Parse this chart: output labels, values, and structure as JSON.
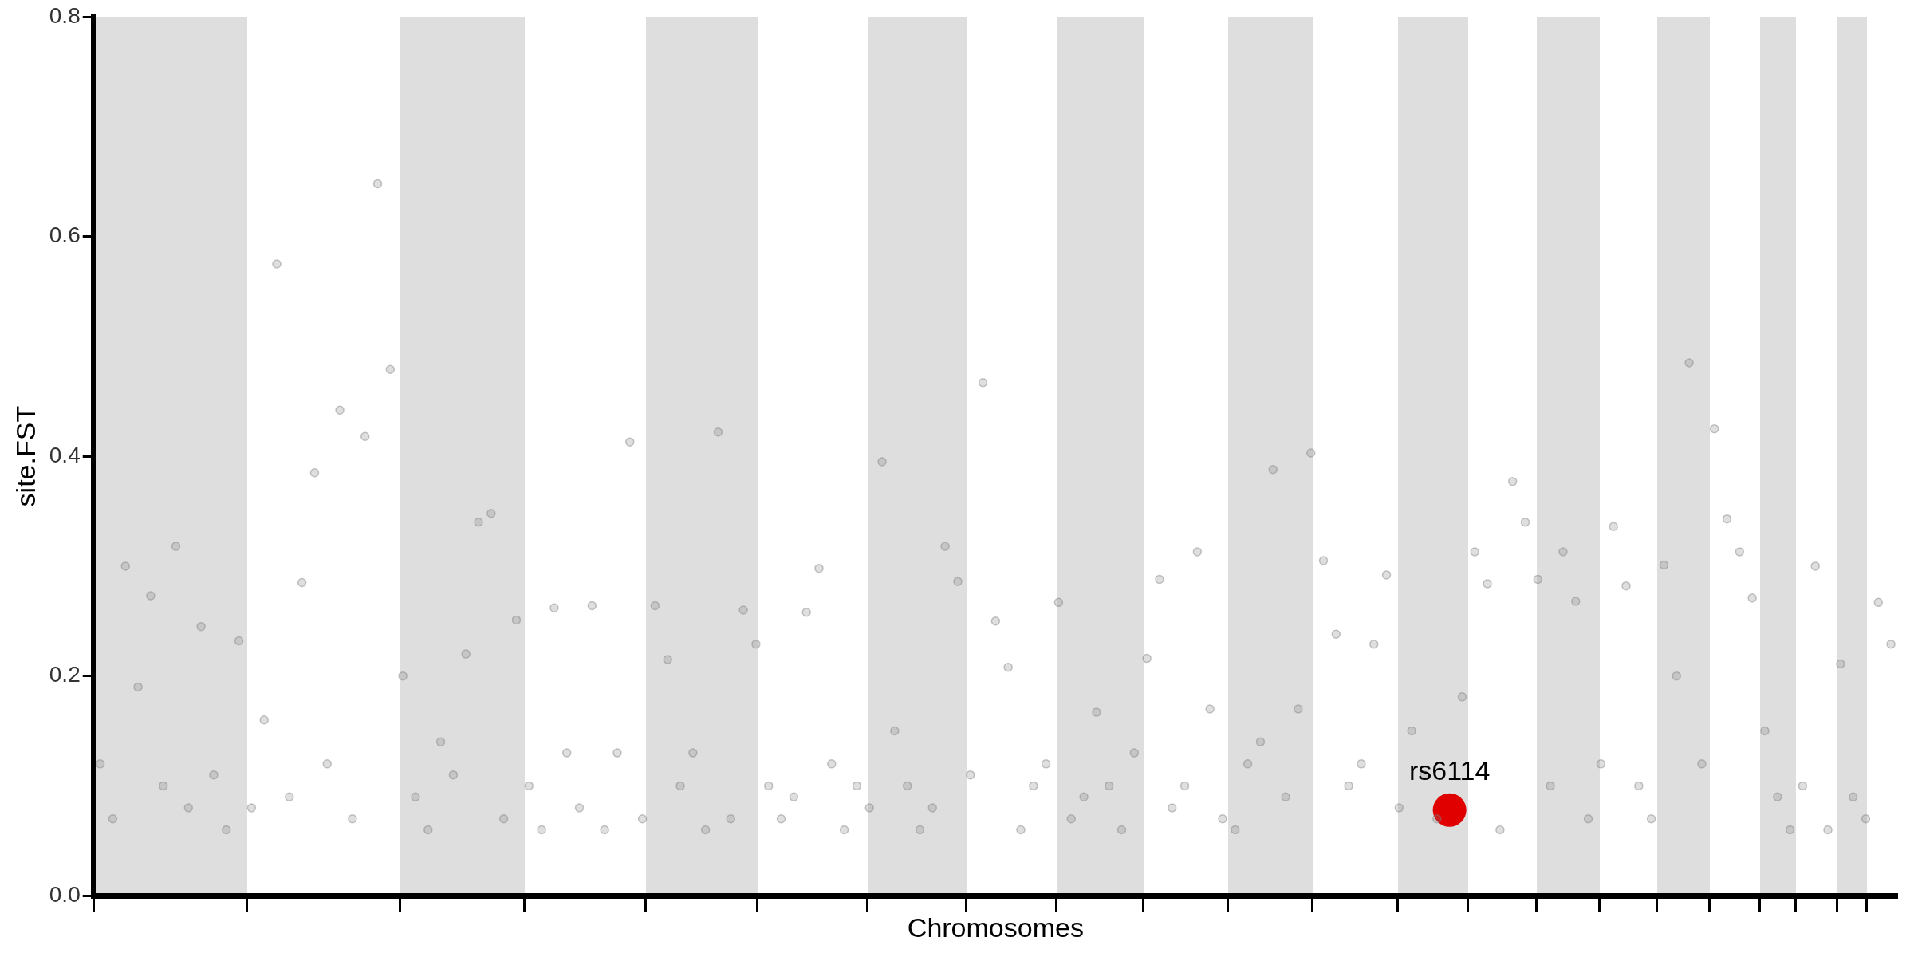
{
  "chart_data": {
    "type": "scatter",
    "xlabel": "Chromosomes",
    "ylabel": "site.FST",
    "ylim": [
      0,
      0.8
    ],
    "categories": [
      null,
      null,
      null,
      null,
      null,
      null,
      null,
      null,
      null,
      null,
      null,
      null,
      null,
      null,
      null,
      null,
      null,
      null,
      null,
      null,
      null,
      null,
      null,
      null,
      null,
      null,
      null,
      null,
      null,
      null,
      null,
      null,
      null,
      null,
      null,
      null,
      null,
      null,
      null,
      null,
      null,
      null,
      null,
      null,
      null,
      null,
      null,
      null,
      null,
      null,
      null,
      null,
      null,
      null,
      null,
      null,
      null,
      null,
      null,
      null,
      null,
      null,
      null,
      null,
      null,
      null,
      null,
      null,
      null,
      null,
      null,
      null,
      null,
      null,
      null,
      null,
      null,
      null,
      null,
      null,
      null,
      null,
      null,
      null,
      null,
      null,
      null,
      null,
      null,
      null,
      null,
      null,
      null,
      null,
      null,
      null,
      null,
      null,
      null,
      null,
      null,
      null,
      null,
      null,
      null,
      null,
      null,
      null,
      null,
      null,
      null,
      null,
      null,
      null,
      null,
      null,
      null,
      null,
      null,
      null,
      null,
      null,
      null,
      null,
      null,
      null,
      null,
      null,
      null,
      null,
      null,
      null,
      null,
      null,
      null,
      null,
      null,
      null,
      null,
      null,
      null,
      null,
      null
    ],
    "yticks": [
      {
        "value": 0,
        "label": "0.0"
      },
      {
        "value": 0.2,
        "label": "0.2"
      },
      {
        "value": 0.4,
        "label": "0.4"
      },
      {
        "value": 0.6,
        "label": "0.6"
      },
      {
        "value": 0.8,
        "label": "0.8"
      }
    ],
    "tick_labels": "y",
    "grid": false,
    "legend": false,
    "marker": "circle",
    "annotations": [
      {
        "text": "rs6114",
        "y": 0.078
      }
    ],
    "series": [
      {
        "color": "#808080",
        "values": [
          0.12,
          0.07,
          0.3,
          0.19,
          0.273,
          0.1,
          0.318,
          0.08,
          0.245,
          0.11,
          0.06,
          0.232,
          0.08,
          0.16,
          0.575,
          0.09,
          0.285,
          0.385,
          0.12,
          0.442,
          0.07,
          0.418,
          0.648,
          0.479,
          0.2,
          0.09,
          0.06,
          0.14,
          0.11,
          0.22,
          0.34,
          0.348,
          0.07,
          0.251,
          0.1,
          0.06,
          0.262,
          0.13,
          0.08,
          0.264,
          0.06,
          0.13,
          0.413,
          0.07,
          0.264,
          0.215,
          0.1,
          0.13,
          0.06,
          0.422,
          0.07,
          0.26,
          0.229,
          0.1,
          0.07,
          0.09,
          0.258,
          0.298,
          0.12,
          0.06,
          0.1,
          0.08,
          0.395,
          0.15,
          0.1,
          0.06,
          0.08,
          0.318,
          0.286,
          0.11,
          0.467,
          0.25,
          0.208,
          0.06,
          0.1,
          0.12,
          0.267,
          0.07,
          0.09,
          0.167,
          0.1,
          0.06,
          0.13,
          0.216,
          0.288,
          0.08,
          0.1,
          0.313,
          0.17,
          0.07,
          0.06,
          0.12,
          0.14,
          0.388,
          0.09,
          0.17,
          0.403,
          0.305,
          0.238,
          0.1,
          0.12,
          0.229,
          0.292,
          0.08,
          0.15,
          0.11,
          0.07,
          null,
          0.181,
          0.313,
          0.284,
          0.06,
          0.377,
          0.34,
          0.288,
          0.1,
          0.313,
          0.268,
          0.07,
          0.12,
          0.336,
          0.282,
          0.1,
          0.07,
          0.301,
          0.2,
          0.485,
          0.12,
          0.425,
          0.343,
          0.313,
          0.271,
          0.15,
          0.09,
          0.06,
          0.1,
          0.3,
          0.06,
          0.211,
          0.09,
          0.07,
          0.267,
          0.229
        ]
      },
      {
        "color": "#e00000",
        "values": [
          null,
          null,
          null,
          null,
          null,
          null,
          null,
          null,
          null,
          null,
          null,
          null,
          null,
          null,
          null,
          null,
          null,
          null,
          null,
          null,
          null,
          null,
          null,
          null,
          null,
          null,
          null,
          null,
          null,
          null,
          null,
          null,
          null,
          null,
          null,
          null,
          null,
          null,
          null,
          null,
          null,
          null,
          null,
          null,
          null,
          null,
          null,
          null,
          null,
          null,
          null,
          null,
          null,
          null,
          null,
          null,
          null,
          null,
          null,
          null,
          null,
          null,
          null,
          null,
          null,
          null,
          null,
          null,
          null,
          null,
          null,
          null,
          null,
          null,
          null,
          null,
          null,
          null,
          null,
          null,
          null,
          null,
          null,
          null,
          null,
          null,
          null,
          null,
          null,
          null,
          null,
          null,
          null,
          null,
          null,
          null,
          null,
          null,
          null,
          null,
          null,
          null,
          null,
          null,
          null,
          null,
          null,
          0.078,
          null,
          null,
          null,
          null,
          null,
          null,
          null,
          null,
          null,
          null,
          null,
          null,
          null,
          null,
          null,
          null,
          null,
          null,
          null,
          null,
          null,
          null,
          null,
          null,
          null,
          null,
          null,
          null,
          null,
          null,
          null,
          null,
          null,
          null,
          null
        ]
      }
    ]
  }
}
